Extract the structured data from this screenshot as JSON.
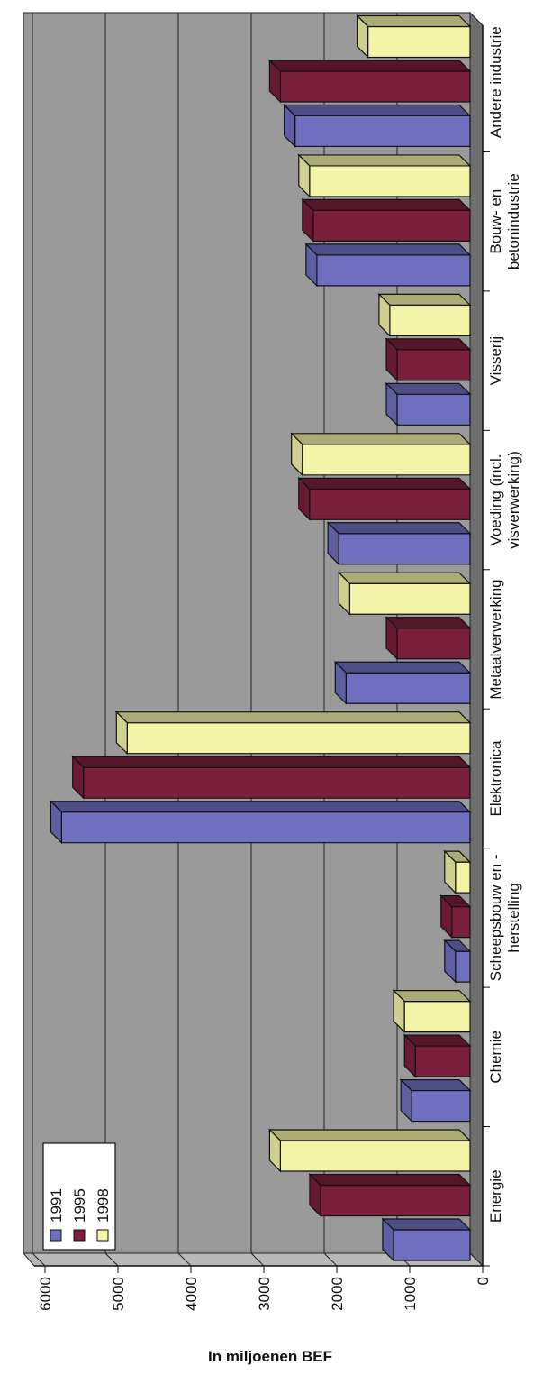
{
  "chart_data": {
    "type": "bar",
    "orientation": "rotated-90-ccw",
    "categories": [
      [
        "Energie"
      ],
      [
        "Chemie"
      ],
      [
        "Scheepsbouw en -",
        "herstelling"
      ],
      [
        "Elektronica"
      ],
      [
        "Metaalverwerking"
      ],
      [
        "Voeding (incl.",
        "visverwerking)"
      ],
      [
        "Visserij"
      ],
      [
        "Bouw- en",
        "betonindustrie"
      ],
      [
        "Andere industrie"
      ]
    ],
    "series": [
      {
        "name": "1991",
        "color": "#6f6fc0",
        "values": [
          1050,
          800,
          200,
          5600,
          1700,
          1800,
          1000,
          2100,
          2400
        ]
      },
      {
        "name": "1995",
        "color": "#7a1f3c",
        "values": [
          2050,
          750,
          250,
          5300,
          1000,
          2200,
          1000,
          2150,
          2600
        ]
      },
      {
        "name": "1998",
        "color": "#f4f4a8",
        "values": [
          2600,
          900,
          200,
          4700,
          1650,
          2300,
          1100,
          2200,
          1400
        ]
      }
    ],
    "ylabel": "In miljoenen BEF",
    "ylim": [
      0,
      6000
    ],
    "yticks": [
      "0",
      "1000",
      "2000",
      "3000",
      "4000",
      "5000",
      "6000"
    ],
    "grid": true,
    "legend_position": "lower-left",
    "colors": {
      "wall": "#9a9a9a",
      "wall_side": "#b8b8b8",
      "floor": "#6e6e6e",
      "gridline": "#222222"
    }
  }
}
